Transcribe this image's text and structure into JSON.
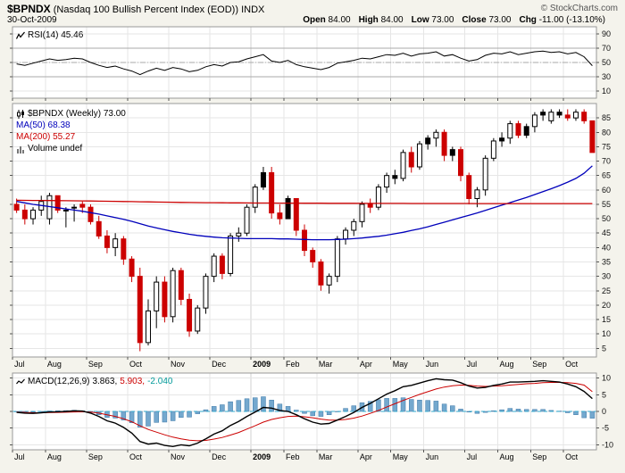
{
  "header": {
    "symbol": "$BPNDX",
    "title": "(Nasdaq 100 Bullish Percent Index (EOD)) INDX",
    "credit": "© StockCharts.com",
    "date": "30-Oct-2009",
    "quote": {
      "open_label": "Open",
      "open": "84.00",
      "high_label": "High",
      "high": "84.00",
      "low_label": "Low",
      "low": "73.00",
      "close_label": "Close",
      "close": "73.00",
      "chg_label": "Chg",
      "chg": "-11.00 (-13.10%)"
    }
  },
  "panels": {
    "rsi": {
      "label": "RSI(14) 45.46"
    },
    "main": {
      "label": "$BPNDX (Weekly) 73.00",
      "ma50_label": "MA(50) 68.38",
      "ma200_label": "MA(200) 55.27",
      "volume_label": "Volume undef"
    },
    "macd": {
      "label": "MACD(12,26,9)",
      "value_macd": "3.863,",
      "value_signal": "5.903,",
      "value_hist": "-2.040"
    }
  },
  "colors": {
    "down": "#CC0000",
    "up_outline": "#000000",
    "ma50": "#0000BB",
    "ma200": "#CC0000",
    "hist": "#74A8CE",
    "histStroke": "#3C78A8",
    "histText": "#009999",
    "signal": "#CC0000",
    "macdLine": "#000000",
    "zero": "#33AACC",
    "background": "#F4F3EC",
    "panel": "#FFFFFF",
    "grid": "#E6E6E6",
    "border": "#999999"
  },
  "chart_data": [
    {
      "type": "line",
      "title": "RSI(14)",
      "ylim": [
        0,
        100
      ],
      "yticks": [
        90,
        70,
        50,
        30,
        10
      ],
      "hlines": [
        {
          "y": 70,
          "style": "solid"
        },
        {
          "y": 50,
          "style": "dashdot"
        },
        {
          "y": 30,
          "style": "solid"
        }
      ],
      "values": [
        48,
        46,
        49,
        52,
        55,
        53,
        54,
        56,
        55,
        50,
        46,
        43,
        45,
        41,
        38,
        33,
        38,
        42,
        39,
        43,
        41,
        37,
        39,
        44,
        47,
        45,
        50,
        51,
        55,
        58,
        61,
        52,
        50,
        53,
        47,
        44,
        42,
        40,
        43,
        49,
        51,
        53,
        56,
        55,
        58,
        61,
        60,
        63,
        59,
        62,
        63,
        65,
        59,
        61,
        56,
        52,
        54,
        60,
        63,
        62,
        65,
        61,
        63,
        65,
        66,
        64,
        65,
        62,
        64,
        58,
        45.46
      ],
      "last_value": 45.46
    },
    {
      "type": "candlestick",
      "title": "$BPNDX (Weekly)",
      "ylim": [
        2,
        90
      ],
      "yticks": [
        85,
        80,
        75,
        70,
        65,
        60,
        55,
        50,
        45,
        40,
        35,
        30,
        25,
        20,
        15,
        10,
        5
      ],
      "months": {
        "labels": [
          "Jul",
          "Aug",
          "Sep",
          "Oct",
          "Nov",
          "Dec",
          "2009",
          "Feb",
          "Mar",
          "Apr",
          "May",
          "Jun",
          "Jul",
          "Aug",
          "Sep",
          "Oct"
        ],
        "indices": [
          0,
          4,
          9,
          14,
          19,
          24,
          29,
          33,
          37,
          42,
          46,
          50,
          55,
          59,
          63,
          67
        ],
        "bold_index": 6
      },
      "candles": [
        [
          55,
          57,
          52,
          53,
          "d"
        ],
        [
          53,
          55,
          48,
          50,
          "d"
        ],
        [
          50,
          54,
          48,
          53,
          "u"
        ],
        [
          53,
          58,
          51,
          56,
          "u"
        ],
        [
          50,
          59,
          48,
          58,
          "u"
        ],
        [
          58,
          58,
          52,
          53,
          "d"
        ],
        [
          53,
          54,
          47,
          53,
          "u"
        ],
        [
          54,
          55,
          49,
          54,
          "u"
        ],
        [
          55,
          56,
          52,
          54,
          "d"
        ],
        [
          54,
          55,
          48,
          49,
          "d"
        ],
        [
          49,
          51,
          43,
          44,
          "d"
        ],
        [
          44,
          46,
          38,
          40,
          "d"
        ],
        [
          40,
          45,
          37,
          43,
          "u"
        ],
        [
          43,
          44,
          34,
          36,
          "d"
        ],
        [
          36,
          37,
          28,
          30,
          "d"
        ],
        [
          30,
          33,
          4,
          7,
          "d"
        ],
        [
          7,
          22,
          6,
          18,
          "u"
        ],
        [
          18,
          30,
          12,
          28,
          "u"
        ],
        [
          28,
          30,
          14,
          16,
          "d"
        ],
        [
          16,
          33,
          14,
          32,
          "u"
        ],
        [
          32,
          33,
          20,
          22,
          "d"
        ],
        [
          22,
          24,
          9,
          11,
          "d"
        ],
        [
          11,
          20,
          10,
          19,
          "u"
        ],
        [
          19,
          31,
          17,
          30,
          "u"
        ],
        [
          30,
          38,
          28,
          37,
          "u"
        ],
        [
          37,
          38,
          29,
          31,
          "d"
        ],
        [
          31,
          45,
          30,
          44,
          "u"
        ],
        [
          44,
          47,
          42,
          45,
          "u"
        ],
        [
          45,
          55,
          44,
          54,
          "u"
        ],
        [
          54,
          62,
          52,
          61,
          "u"
        ],
        [
          61,
          68,
          60,
          66,
          "b"
        ],
        [
          66,
          68,
          50,
          52,
          "d"
        ],
        [
          52,
          55,
          48,
          50,
          "d"
        ],
        [
          50,
          58,
          50,
          57,
          "b"
        ],
        [
          57,
          57,
          44,
          46,
          "d"
        ],
        [
          46,
          48,
          37,
          39,
          "d"
        ],
        [
          39,
          40,
          33,
          35,
          "d"
        ],
        [
          35,
          36,
          25,
          27,
          "d"
        ],
        [
          27,
          31,
          24,
          30,
          "u"
        ],
        [
          30,
          44,
          28,
          43,
          "u"
        ],
        [
          43,
          47,
          41,
          46,
          "u"
        ],
        [
          46,
          50,
          44,
          49,
          "u"
        ],
        [
          49,
          56,
          47,
          55,
          "u"
        ],
        [
          55,
          57,
          52,
          54,
          "d"
        ],
        [
          54,
          62,
          53,
          61,
          "u"
        ],
        [
          61,
          66,
          59,
          65,
          "u"
        ],
        [
          65,
          67,
          62,
          64,
          "b"
        ],
        [
          64,
          74,
          63,
          73,
          "u"
        ],
        [
          73,
          75,
          66,
          68,
          "d"
        ],
        [
          68,
          77,
          67,
          76,
          "u"
        ],
        [
          76,
          79,
          74,
          78,
          "b"
        ],
        [
          78,
          81,
          75,
          80,
          "u"
        ],
        [
          80,
          81,
          70,
          72,
          "d"
        ],
        [
          72,
          75,
          70,
          74,
          "b"
        ],
        [
          74,
          75,
          63,
          65,
          "d"
        ],
        [
          65,
          66,
          55,
          57,
          "d"
        ],
        [
          57,
          61,
          54,
          60,
          "u"
        ],
        [
          60,
          72,
          58,
          71,
          "u"
        ],
        [
          71,
          78,
          70,
          77,
          "u"
        ],
        [
          77,
          80,
          75,
          78,
          "b"
        ],
        [
          78,
          84,
          76,
          83,
          "u"
        ],
        [
          83,
          84,
          78,
          79,
          "d"
        ],
        [
          79,
          83,
          78,
          82,
          "b"
        ],
        [
          82,
          87,
          80,
          86,
          "u"
        ],
        [
          86,
          88,
          84,
          87,
          "b"
        ],
        [
          84,
          88,
          83,
          87,
          "u"
        ],
        [
          87,
          88,
          85,
          86,
          "b"
        ],
        [
          86,
          88,
          84,
          85,
          "d"
        ],
        [
          85,
          88,
          84,
          87,
          "u"
        ],
        [
          87,
          88,
          83,
          84,
          "d"
        ],
        [
          84,
          84,
          73,
          73,
          "d"
        ]
      ],
      "series": [
        {
          "name": "MA(50)",
          "color": "#0000BB",
          "values": [
            56,
            55.5,
            55,
            54.6,
            54.2,
            53.8,
            53.4,
            53,
            52.6,
            52.1,
            51.6,
            51,
            50.4,
            49.8,
            49.1,
            48.3,
            47.5,
            46.8,
            46.2,
            45.6,
            45.1,
            44.6,
            44.2,
            43.9,
            43.6,
            43.4,
            43.3,
            43.2,
            43.1,
            43.1,
            43.1,
            43.1,
            43,
            43,
            42.9,
            42.8,
            42.7,
            42.7,
            42.7,
            42.8,
            42.9,
            43.1,
            43.3,
            43.6,
            43.9,
            44.3,
            44.8,
            45.3,
            45.9,
            46.5,
            47.2,
            48,
            48.8,
            49.6,
            50.4,
            51.2,
            52,
            52.9,
            53.8,
            54.7,
            55.6,
            56.5,
            57.4,
            58.4,
            59.4,
            60.4,
            61.5,
            62.7,
            64,
            65.8,
            68.38
          ]
        },
        {
          "name": "MA(200)",
          "color": "#CC0000",
          "values": [
            56.4,
            56.38,
            56.36,
            56.34,
            56.31,
            56.28,
            56.25,
            56.22,
            56.19,
            56.15,
            56.11,
            56.07,
            56.03,
            55.99,
            55.95,
            55.9,
            55.85,
            55.8,
            55.76,
            55.72,
            55.68,
            55.65,
            55.62,
            55.59,
            55.56,
            55.54,
            55.52,
            55.5,
            55.48,
            55.46,
            55.45,
            55.44,
            55.43,
            55.42,
            55.41,
            55.4,
            55.39,
            55.38,
            55.37,
            55.36,
            55.35,
            55.35,
            55.34,
            55.34,
            55.33,
            55.33,
            55.32,
            55.32,
            55.31,
            55.31,
            55.3,
            55.3,
            55.3,
            55.29,
            55.29,
            55.29,
            55.28,
            55.28,
            55.28,
            55.28,
            55.27,
            55.27,
            55.27,
            55.27,
            55.27,
            55.27,
            55.27,
            55.27,
            55.27,
            55.27,
            55.27
          ]
        }
      ],
      "last_ohlc": {
        "open": 84,
        "high": 84,
        "low": 73,
        "close": 73
      }
    },
    {
      "type": "macd",
      "title": "MACD(12,26,9)",
      "ylim": [
        -11.5,
        11.5
      ],
      "yticks": [
        10,
        5,
        0,
        -5,
        -10
      ],
      "macd": [
        -0.3,
        -0.5,
        -0.6,
        -0.4,
        -0.2,
        -0.1,
        0,
        0.2,
        0.1,
        -0.5,
        -1.5,
        -2.8,
        -3.5,
        -4.8,
        -6.5,
        -9,
        -9.8,
        -9.5,
        -10.2,
        -10.5,
        -10,
        -10.3,
        -9.5,
        -8.2,
        -6.8,
        -5.8,
        -4.2,
        -3,
        -1.5,
        -0.2,
        1.2,
        1,
        0.3,
        0,
        -1,
        -2.2,
        -3.2,
        -3.8,
        -3.6,
        -2.6,
        -1.5,
        -0.3,
        1.2,
        2.4,
        3.8,
        5.2,
        6.2,
        7.4,
        7.8,
        8.5,
        9.2,
        9.8,
        9.5,
        9.4,
        8.6,
        7.6,
        7,
        7.2,
        7.8,
        8.2,
        8.8,
        8.8,
        8.9,
        9,
        9.2,
        9,
        8.8,
        8.2,
        7.4,
        6,
        3.863
      ],
      "signal": [
        -0.2,
        -0.3,
        -0.4,
        -0.4,
        -0.35,
        -0.3,
        -0.25,
        -0.15,
        -0.1,
        -0.2,
        -0.5,
        -1,
        -1.5,
        -2.2,
        -3.1,
        -4.3,
        -5.4,
        -6.2,
        -7,
        -7.7,
        -8.2,
        -8.6,
        -8.8,
        -8.7,
        -8.3,
        -7.8,
        -7.1,
        -6.3,
        -5.3,
        -4.3,
        -3.2,
        -2.4,
        -1.9,
        -1.5,
        -1.4,
        -1.6,
        -1.9,
        -2.3,
        -2.6,
        -2.6,
        -2.4,
        -2,
        -1.4,
        -0.6,
        0.3,
        1.3,
        2.3,
        3.3,
        4.2,
        5.1,
        5.9,
        6.7,
        7.3,
        7.7,
        7.9,
        7.8,
        7.6,
        7.5,
        7.6,
        7.7,
        7.9,
        8.1,
        8.3,
        8.4,
        8.6,
        8.7,
        8.7,
        8.6,
        8.4,
        7.9,
        5.903
      ],
      "last": {
        "macd": 3.863,
        "signal": 5.903,
        "hist": -2.04
      }
    }
  ]
}
